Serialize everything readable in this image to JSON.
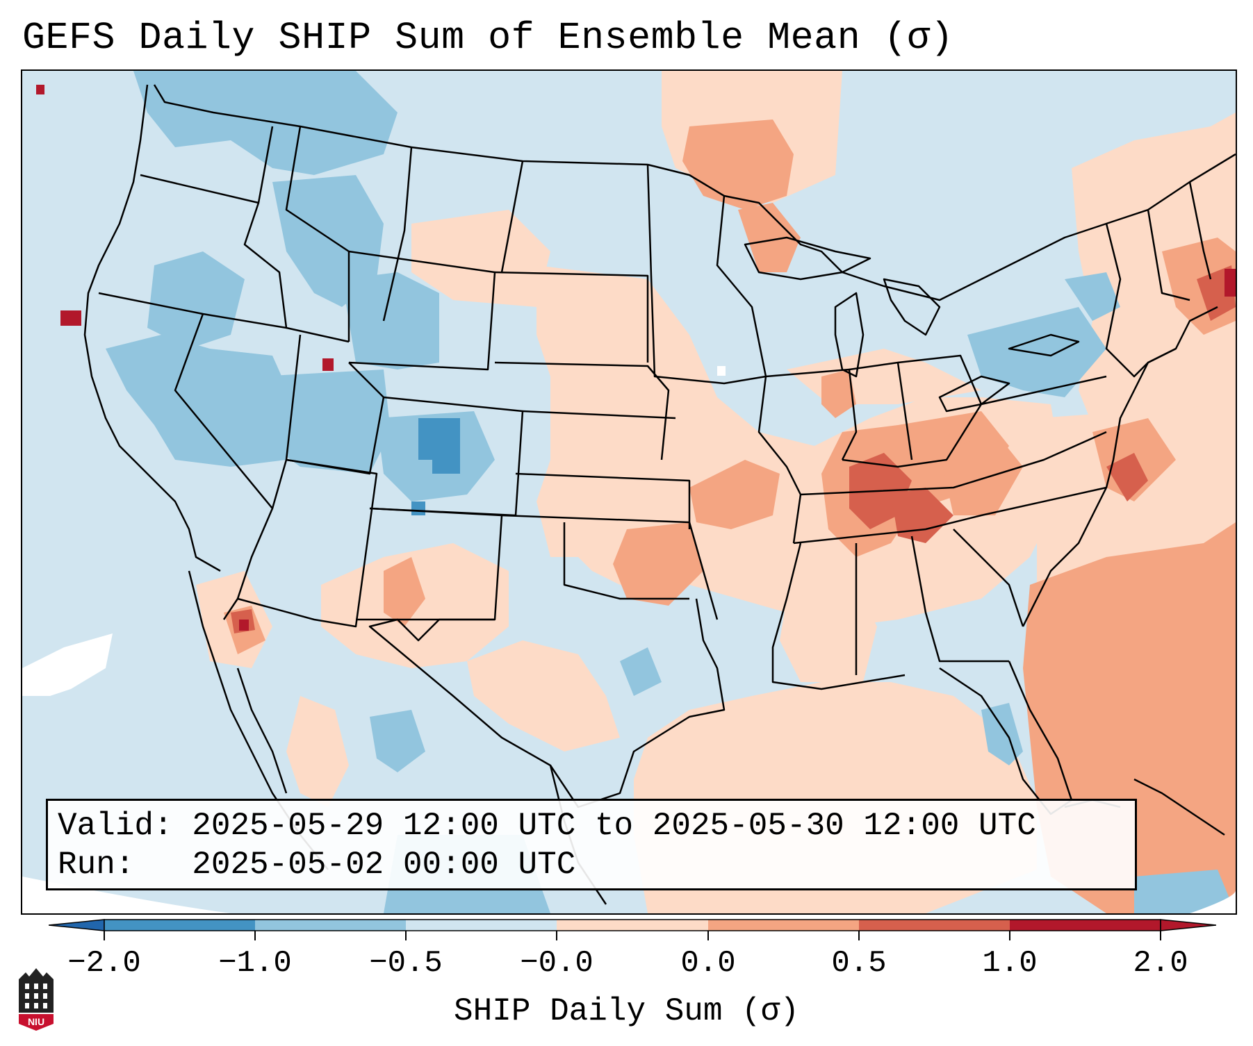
{
  "title": "GEFS Daily SHIP Sum of Ensemble Mean (σ)",
  "info": {
    "valid_line": "Valid: 2025-05-29 12:00 UTC to 2025-05-30 12:00 UTC",
    "run_line": "Run:   2025-05-02 00:00 UTC"
  },
  "colorbar": {
    "label": "SHIP Daily Sum (σ)",
    "ticks": [
      "−2.0",
      "−1.0",
      "−0.5",
      "−0.0",
      "0.0",
      "0.5",
      "1.0",
      "2.0"
    ],
    "colors": [
      "#2166ac",
      "#4393c3",
      "#92c5de",
      "#d1e5f0",
      "#fddbc7",
      "#f4a582",
      "#d6604d",
      "#b2182b"
    ],
    "extend": "both"
  },
  "legend_colors": {
    "below_-2": "#2166ac",
    "-2_to_-1": "#4393c3",
    "-1_to_-0.5": "#92c5de",
    "-0.5_to_0": "#d1e5f0",
    "0_to_0.5": "#fddbc7",
    "0.5_to_1": "#f4a582",
    "1_to_2": "#d6604d",
    "above_2": "#b2182b"
  },
  "logo": {
    "text": "NIU",
    "name": "niu-logo"
  }
}
